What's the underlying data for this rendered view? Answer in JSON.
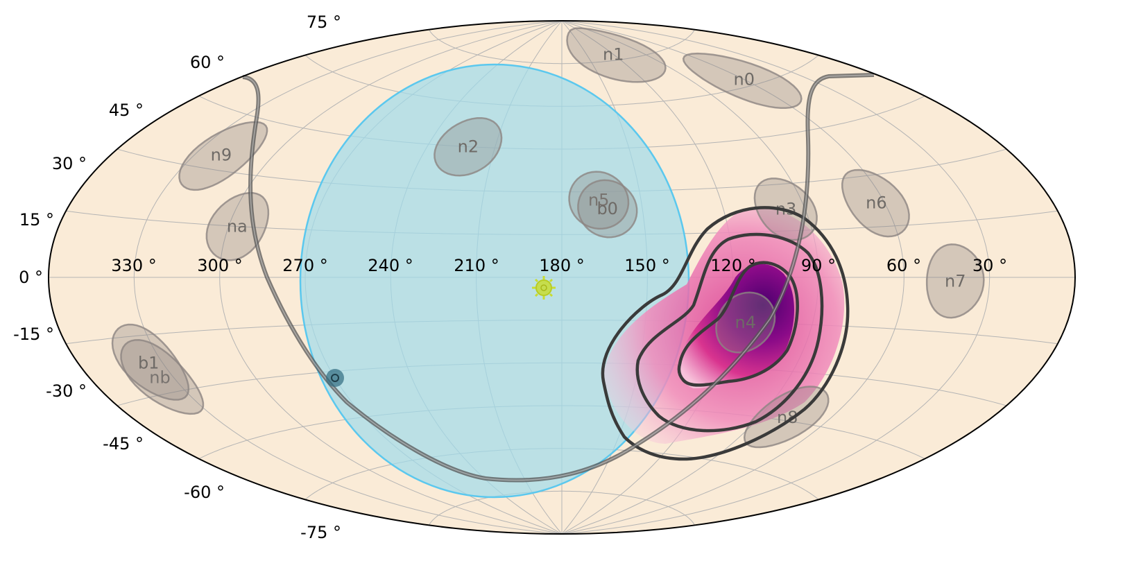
{
  "map": {
    "projection": "aitoff",
    "colors": {
      "sky_background": "#faebd7",
      "grid": "#b4b4b4",
      "earth_fill": "#a0dceb",
      "earth_edge": "#5bc8ee",
      "detector_fill": "#8c8482",
      "detector_label": "#6e6a66",
      "galactic_plane": "#555555",
      "sun": "#c8dc32",
      "contour": "#3a3a3a",
      "probability_low": "#f8c8de",
      "probability_high": "#4b006e"
    },
    "longitude_labels": [
      "330 °",
      "300 °",
      "270 °",
      "240 °",
      "210 °",
      "180 °",
      "150 °",
      "120 °",
      "90 °",
      "60 °",
      "30 °"
    ],
    "latitude_labels": [
      "75 °",
      "60 °",
      "45 °",
      "30 °",
      "15 °",
      "0 °",
      "-15 °",
      "-30 °",
      "-45 °",
      "-60 °",
      "-75 °"
    ],
    "detectors": [
      {
        "label": "n0",
        "ra": 60,
        "dec": 62
      },
      {
        "label": "n1",
        "ra": 120,
        "dec": 77
      },
      {
        "label": "n2",
        "ra": 222,
        "dec": 45
      },
      {
        "label": "n3",
        "ra": 97,
        "dec": 22
      },
      {
        "label": "n4",
        "ra": 114,
        "dec": -15
      },
      {
        "label": "n5",
        "ra": 166,
        "dec": 27
      },
      {
        "label": "n6",
        "ra": 63,
        "dec": 22
      },
      {
        "label": "n7",
        "ra": 42,
        "dec": -1
      },
      {
        "label": "n8",
        "ra": 78,
        "dec": -44
      },
      {
        "label": "n9",
        "ra": 320,
        "dec": 34
      },
      {
        "label": "na",
        "ra": 297,
        "dec": 15
      },
      {
        "label": "nb",
        "ra": 335,
        "dec": -26
      },
      {
        "label": "b0",
        "ra": 163,
        "dec": 24
      },
      {
        "label": "b1",
        "ra": 335,
        "dec": -22
      }
    ],
    "sun_symbol": "sun-icon",
    "sun_position": {
      "ra": 185,
      "dec": -3
    },
    "earth_center": {
      "ra": 192,
      "dec": 0
    }
  }
}
